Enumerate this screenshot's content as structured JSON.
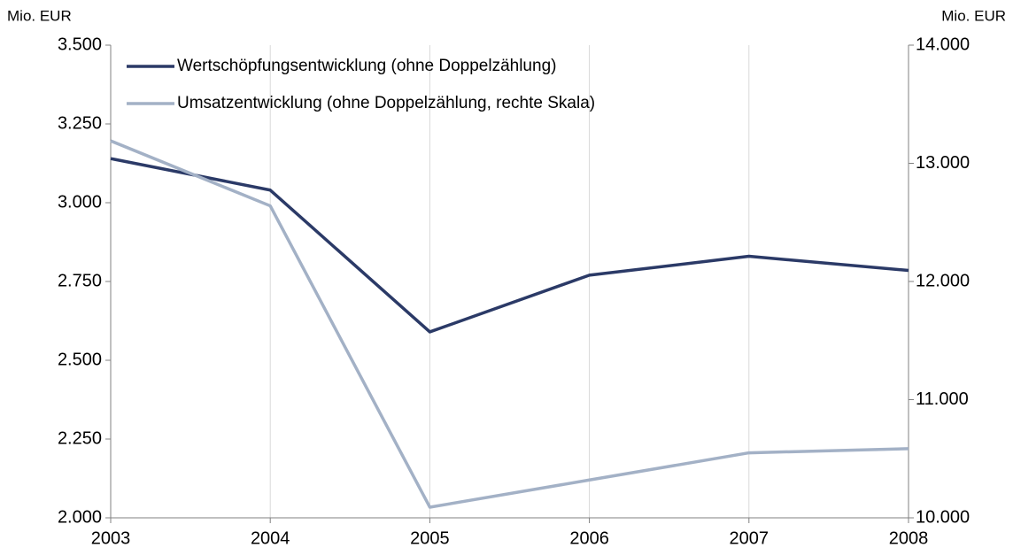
{
  "chart_data": {
    "type": "line",
    "ylabel": "Mio. EUR",
    "y2label": "Mio. EUR",
    "categories": [
      "2003",
      "2004",
      "2005",
      "2006",
      "2007",
      "2008"
    ],
    "series": [
      {
        "name": "Wertschöpfungsentwicklung (ohne Doppelzählung)",
        "color": "#2b3a67",
        "values": [
          3140,
          3040,
          2590,
          2770,
          2830,
          2785
        ]
      },
      {
        "name": "Umsatzentwicklung (ohne Doppelzählung, rechte Skala)",
        "color": "#a3b1c6",
        "axis": "y2",
        "values": [
          13190,
          12640,
          10090,
          10320,
          10550,
          10585
        ]
      }
    ],
    "ylim": [
      2000,
      3500
    ],
    "yticks": [
      {
        "value": 2000,
        "label": "2.000"
      },
      {
        "value": 2250,
        "label": "2.250"
      },
      {
        "value": 2500,
        "label": "2.500"
      },
      {
        "value": 2750,
        "label": "2.750"
      },
      {
        "value": 3000,
        "label": "3.000"
      },
      {
        "value": 3250,
        "label": "3.250"
      },
      {
        "value": 3500,
        "label": "3.500"
      }
    ],
    "y2lim": [
      10000,
      14000
    ],
    "y2ticks": [
      {
        "value": 10000,
        "label": "10.000"
      },
      {
        "value": 11000,
        "label": "11.000"
      },
      {
        "value": 12000,
        "label": "12.000"
      },
      {
        "value": 13000,
        "label": "13.000"
      },
      {
        "value": 14000,
        "label": "14.000"
      }
    ],
    "grid": true,
    "legend": "upper left"
  }
}
